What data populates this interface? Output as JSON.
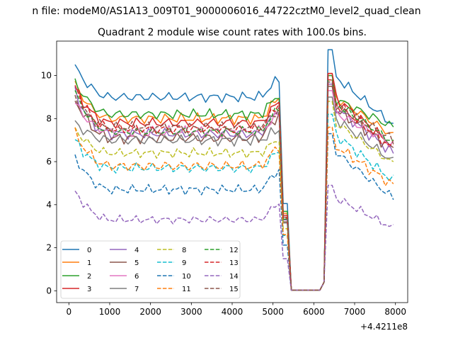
{
  "chart_data": {
    "type": "line",
    "suptitle": "n file: modeM0/AS1A13_009T01_9000006016_44722cztM0_level2_quad_clean",
    "title": "Quadrant 2 module wise count rates with 100.0s bins.",
    "xlabel": "",
    "ylabel": "",
    "x_offset_label": "+4.4211e8",
    "xlim": [
      -300,
      8300
    ],
    "ylim": [
      -0.55,
      11.6
    ],
    "xticks": [
      0,
      1000,
      2000,
      3000,
      4000,
      5000,
      6000,
      7000,
      8000
    ],
    "yticks": [
      0,
      2,
      4,
      6,
      8,
      10
    ],
    "xtick_labels": [
      "0",
      "1000",
      "2000",
      "3000",
      "4000",
      "5000",
      "6000",
      "7000",
      "8000"
    ],
    "ytick_labels": [
      "0",
      "2",
      "4",
      "6",
      "8",
      "10"
    ],
    "grid": false,
    "legend_position": "lower-left",
    "legend_columns": 4,
    "x": [
      150,
      250,
      350,
      450,
      550,
      650,
      750,
      850,
      950,
      1050,
      1150,
      1250,
      1350,
      1450,
      1550,
      1650,
      1750,
      1850,
      1950,
      2050,
      2150,
      2250,
      2350,
      2450,
      2550,
      2650,
      2750,
      2850,
      2950,
      3050,
      3150,
      3250,
      3350,
      3450,
      3550,
      3650,
      3750,
      3850,
      3950,
      4050,
      4150,
      4250,
      4350,
      4450,
      4550,
      4650,
      4750,
      4850,
      4950,
      5050,
      5150,
      5250,
      5350,
      5450,
      5550,
      5650,
      5750,
      5850,
      5950,
      6050,
      6150,
      6250,
      6350,
      6450,
      6550,
      6650,
      6750,
      6850,
      6950,
      7050,
      7150,
      7250,
      7350,
      7450,
      7550,
      7650,
      7750,
      7850,
      7950
    ],
    "series": [
      {
        "name": "0",
        "color": "#1f77b4",
        "dash": "solid",
        "level": 9.0,
        "start": 10.4,
        "end": 7.7,
        "post": 11.2,
        "amp": 0.28,
        "phase": 0.3
      },
      {
        "name": "1",
        "color": "#ff7f0e",
        "dash": "solid",
        "level": 8.0,
        "start": 9.6,
        "end": 7.2,
        "post": 10.1,
        "amp": 0.28,
        "phase": 1.1
      },
      {
        "name": "2",
        "color": "#2ca02c",
        "dash": "solid",
        "level": 8.2,
        "start": 9.7,
        "end": 7.6,
        "post": 10.0,
        "amp": 0.28,
        "phase": 2.3
      },
      {
        "name": "3",
        "color": "#d62728",
        "dash": "solid",
        "level": 7.8,
        "start": 9.4,
        "end": 6.7,
        "post": 10.1,
        "amp": 0.3,
        "phase": 0.7
      },
      {
        "name": "4",
        "color": "#9467bd",
        "dash": "solid",
        "level": 7.3,
        "start": 9.2,
        "end": 6.4,
        "post": 9.6,
        "amp": 0.3,
        "phase": 1.9
      },
      {
        "name": "5",
        "color": "#8c564b",
        "dash": "solid",
        "level": 7.1,
        "start": 8.9,
        "end": 6.6,
        "post": 9.5,
        "amp": 0.32,
        "phase": 2.9
      },
      {
        "name": "6",
        "color": "#e377c2",
        "dash": "solid",
        "level": 7.4,
        "start": 8.7,
        "end": 6.8,
        "post": 9.3,
        "amp": 0.3,
        "phase": 0.1
      },
      {
        "name": "7",
        "color": "#7f7f7f",
        "dash": "solid",
        "level": 7.0,
        "start": 7.8,
        "end": 6.0,
        "post": 9.0,
        "amp": 0.3,
        "phase": 1.5
      },
      {
        "name": "8",
        "color": "#bcbd22",
        "dash": "dashed",
        "level": 6.4,
        "start": 7.5,
        "end": 5.9,
        "post": 8.8,
        "amp": 0.25,
        "phase": 2.1
      },
      {
        "name": "9",
        "color": "#17becf",
        "dash": "dashed",
        "level": 5.7,
        "start": 7.0,
        "end": 5.1,
        "post": 8.2,
        "amp": 0.28,
        "phase": 0.9
      },
      {
        "name": "10",
        "color": "#1f77b4",
        "dash": "dashed",
        "level": 4.7,
        "start": 6.2,
        "end": 4.3,
        "post": 7.3,
        "amp": 0.25,
        "phase": 2.6
      },
      {
        "name": "11",
        "color": "#ff7f0e",
        "dash": "dashed",
        "level": 5.8,
        "start": 7.3,
        "end": 4.9,
        "post": 7.6,
        "amp": 0.3,
        "phase": 1.3
      },
      {
        "name": "12",
        "color": "#2ca02c",
        "dash": "dashed",
        "level": 7.4,
        "start": 9.2,
        "end": 6.9,
        "post": 9.8,
        "amp": 0.25,
        "phase": 0.5
      },
      {
        "name": "13",
        "color": "#d62728",
        "dash": "dashed",
        "level": 7.5,
        "start": 9.5,
        "end": 6.6,
        "post": 9.8,
        "amp": 0.28,
        "phase": 2.0
      },
      {
        "name": "14",
        "color": "#9467bd",
        "dash": "dashed",
        "level": 3.3,
        "start": 4.6,
        "end": 2.9,
        "post": 4.9,
        "amp": 0.22,
        "phase": 1.7
      },
      {
        "name": "15",
        "color": "#8c564b",
        "dash": "dashed",
        "level": 7.6,
        "start": 9.0,
        "end": 7.0,
        "post": 9.7,
        "amp": 0.28,
        "phase": 3.1
      }
    ]
  }
}
